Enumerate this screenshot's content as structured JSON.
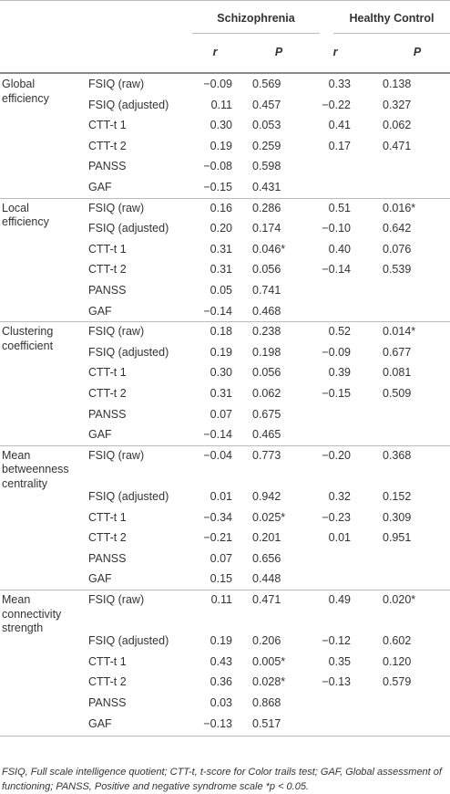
{
  "table": {
    "group_headers": [
      "Schizophrenia",
      "Healthy Control"
    ],
    "column_headers": [
      "r",
      "P",
      "r",
      "P"
    ],
    "groups": [
      {
        "measure": "Global efficiency",
        "rows": [
          [
            "FSIQ (raw)",
            "−0.09",
            "0.569",
            "0.33",
            "0.138"
          ],
          [
            "FSIQ (adjusted)",
            "0.11",
            "0.457",
            "−0.22",
            "0.327"
          ],
          [
            "CTT-t 1",
            "0.30",
            "0.053",
            "0.41",
            "0.062"
          ],
          [
            "CTT-t 2",
            "0.19",
            "0.259",
            "0.17",
            "0.471"
          ],
          [
            "PANSS",
            "−0.08",
            "0.598",
            null,
            null
          ],
          [
            "GAF",
            "−0.15",
            "0.431",
            null,
            null
          ]
        ]
      },
      {
        "measure": "Local efficiency",
        "rows": [
          [
            "FSIQ (raw)",
            "0.16",
            "0.286",
            "0.51",
            "0.016*"
          ],
          [
            "FSIQ (adjusted)",
            "0.20",
            "0.174",
            "−0.10",
            "0.642"
          ],
          [
            "CTT-t 1",
            "0.31",
            "0.046*",
            "0.40",
            "0.076"
          ],
          [
            "CTT-t 2",
            "0.31",
            "0.056",
            "−0.14",
            "0.539"
          ],
          [
            "PANSS",
            "0.05",
            "0.741",
            null,
            null
          ],
          [
            "GAF",
            "−0.14",
            "0.468",
            null,
            null
          ]
        ]
      },
      {
        "measure": "Clustering coefficient",
        "rows": [
          [
            "FSIQ (raw)",
            "0.18",
            "0.238",
            "0.52",
            "0.014*"
          ],
          [
            "FSIQ (adjusted)",
            "0.19",
            "0.198",
            "−0.09",
            "0.677"
          ],
          [
            "CTT-t 1",
            "0.30",
            "0.056",
            "0.39",
            "0.081"
          ],
          [
            "CTT-t 2",
            "0.31",
            "0.062",
            "−0.15",
            "0.509"
          ],
          [
            "PANSS",
            "0.07",
            "0.675",
            null,
            null
          ],
          [
            "GAF",
            "−0.14",
            "0.465",
            null,
            null
          ]
        ]
      },
      {
        "measure": "Mean betweenness centrality",
        "rows": [
          [
            "FSIQ (raw)",
            "−0.04",
            "0.773",
            "−0.20",
            "0.368"
          ],
          [
            "FSIQ (adjusted)",
            "0.01",
            "0.942",
            "0.32",
            "0.152"
          ],
          [
            "CTT-t 1",
            "−0.34",
            "0.025*",
            "−0.23",
            "0.309"
          ],
          [
            "CTT-t 2",
            "−0.21",
            "0.201",
            "0.01",
            "0.951"
          ],
          [
            "PANSS",
            "0.07",
            "0.656",
            null,
            null
          ],
          [
            "GAF",
            "0.15",
            "0.448",
            null,
            null
          ]
        ]
      },
      {
        "measure": "Mean connectivity strength",
        "rows": [
          [
            "FSIQ (raw)",
            "0.11",
            "0.471",
            "0.49",
            "0.020*"
          ],
          [
            "FSIQ (adjusted)",
            "0.19",
            "0.206",
            "−0.12",
            "0.602"
          ],
          [
            "CTT-t 1",
            "0.43",
            "0.005*",
            "0.35",
            "0.120"
          ],
          [
            "CTT-t 2",
            "0.36",
            "0.028*",
            "−0.13",
            "0.579"
          ],
          [
            "PANSS",
            "0.03",
            "0.868",
            null,
            null
          ],
          [
            "GAF",
            "−0.13",
            "0.517",
            null,
            null
          ]
        ]
      }
    ],
    "footnote": "FSIQ, Full scale intelligence quotient; CTT-t, t-score for Color trails test; GAF, Global assessment of functioning; PANSS, Positive and negative syndrome scale *p < 0.05."
  }
}
